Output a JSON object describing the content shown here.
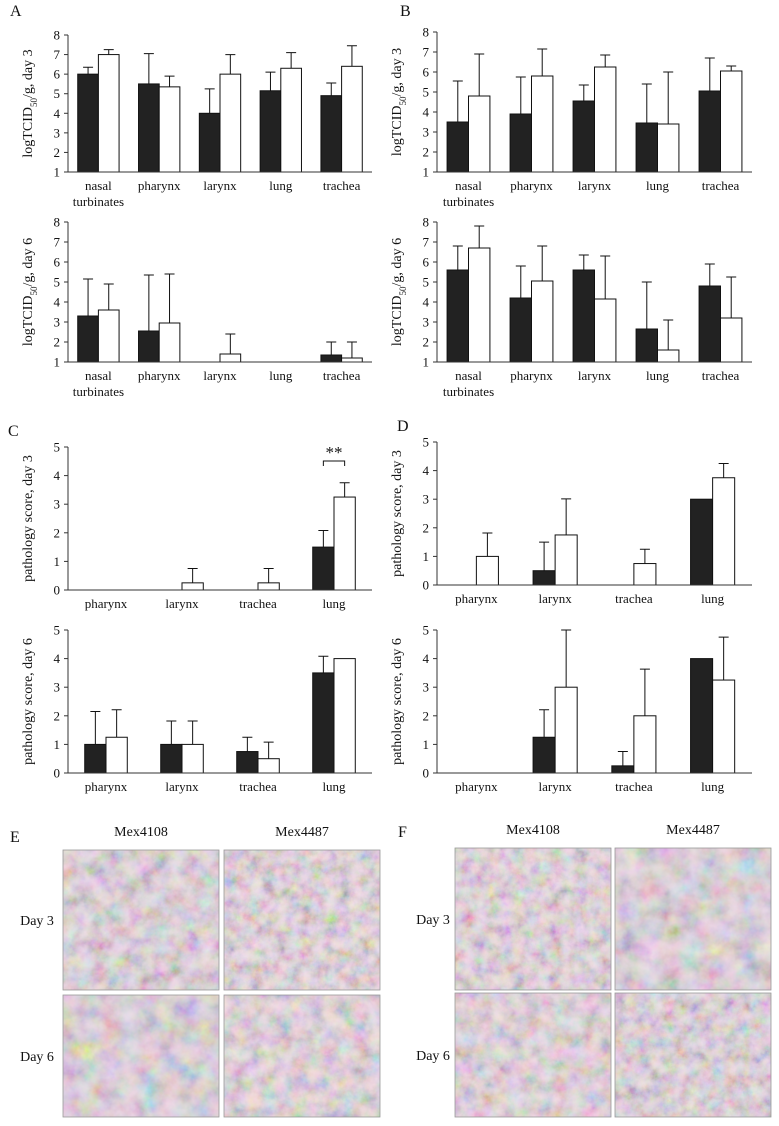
{
  "panel_labels": [
    "A",
    "B",
    "C",
    "D",
    "E",
    "F"
  ],
  "chart_data": [
    {
      "type": "bar",
      "y_label": [
        "logTCID",
        "50",
        "/g, day 3"
      ],
      "categories": [
        "nasal turbinates",
        "pharynx",
        "larynx",
        "lung",
        "trachea"
      ],
      "series": [
        {
          "color": "#222222",
          "values": [
            6.0,
            5.5,
            4.0,
            5.15,
            4.9
          ],
          "errors": [
            0.35,
            1.55,
            1.25,
            0.95,
            0.65
          ]
        },
        {
          "color": "#ffffff",
          "values": [
            7.0,
            5.35,
            6.0,
            6.3,
            6.4
          ],
          "errors": [
            0.25,
            0.55,
            1.0,
            0.8,
            1.05
          ]
        }
      ],
      "ylim": [
        1,
        8
      ],
      "yticks": [
        1,
        2,
        3,
        4,
        5,
        6,
        7,
        8
      ]
    },
    {
      "type": "bar",
      "y_label": [
        "logTCID",
        "50",
        "/g, day 6"
      ],
      "categories": [
        "nasal turbinates",
        "pharynx",
        "larynx",
        "lung",
        "trachea"
      ],
      "series": [
        {
          "color": "#222222",
          "values": [
            3.3,
            2.55,
            1.0,
            1.0,
            1.35
          ],
          "errors": [
            1.85,
            2.8,
            0,
            0,
            0.65
          ]
        },
        {
          "color": "#ffffff",
          "values": [
            3.6,
            2.95,
            1.4,
            1.0,
            1.2
          ],
          "errors": [
            1.3,
            2.45,
            1.0,
            0,
            0.8
          ]
        }
      ],
      "ylim": [
        1,
        8
      ],
      "yticks": [
        1,
        2,
        3,
        4,
        5,
        6,
        7,
        8
      ]
    },
    {
      "type": "bar",
      "y_label": [
        "logTCID",
        "50",
        "/g, day 3"
      ],
      "categories": [
        "nasal turbinates",
        "pharynx",
        "larynx",
        "lung",
        "trachea"
      ],
      "series": [
        {
          "color": "#222222",
          "values": [
            3.5,
            3.9,
            4.55,
            3.45,
            5.05
          ],
          "errors": [
            2.05,
            1.85,
            0.8,
            1.95,
            1.65
          ]
        },
        {
          "color": "#ffffff",
          "values": [
            4.8,
            5.8,
            6.25,
            3.4,
            6.05
          ],
          "errors": [
            2.1,
            1.35,
            0.6,
            2.6,
            0.25
          ]
        }
      ],
      "ylim": [
        1,
        8
      ],
      "yticks": [
        1,
        2,
        3,
        4,
        5,
        6,
        7,
        8
      ]
    },
    {
      "type": "bar",
      "y_label": [
        "logTCID",
        "50",
        "/g, day 6"
      ],
      "categories": [
        "nasal turbinates",
        "pharynx",
        "larynx",
        "lung",
        "trachea"
      ],
      "series": [
        {
          "color": "#222222",
          "values": [
            5.6,
            4.2,
            5.6,
            2.65,
            4.8
          ],
          "errors": [
            1.2,
            1.6,
            0.75,
            2.35,
            1.1
          ]
        },
        {
          "color": "#ffffff",
          "values": [
            6.7,
            5.05,
            4.15,
            1.6,
            3.2
          ],
          "errors": [
            1.1,
            1.75,
            2.15,
            1.5,
            2.05
          ]
        }
      ],
      "ylim": [
        1,
        8
      ],
      "yticks": [
        1,
        2,
        3,
        4,
        5,
        6,
        7,
        8
      ]
    },
    {
      "type": "bar",
      "y_label": [
        "pathology score, day 3"
      ],
      "categories": [
        "pharynx",
        "larynx",
        "trachea",
        "lung"
      ],
      "series": [
        {
          "color": "#222222",
          "values": [
            0,
            0,
            0,
            1.5
          ],
          "errors": [
            0,
            0,
            0,
            0.58
          ]
        },
        {
          "color": "#ffffff",
          "values": [
            0,
            0.25,
            0.25,
            3.25
          ],
          "errors": [
            0,
            0.5,
            0.5,
            0.5
          ]
        }
      ],
      "ylim": [
        0,
        5
      ],
      "yticks": [
        0,
        1,
        2,
        3,
        4,
        5
      ],
      "annotations": [
        {
          "text": "**",
          "x": "lung"
        }
      ]
    },
    {
      "type": "bar",
      "y_label": [
        "pathology score, day 6"
      ],
      "categories": [
        "pharynx",
        "larynx",
        "trachea",
        "lung"
      ],
      "series": [
        {
          "color": "#222222",
          "values": [
            1.0,
            1.0,
            0.75,
            3.5
          ],
          "errors": [
            1.15,
            0.82,
            0.5,
            0.58
          ]
        },
        {
          "color": "#ffffff",
          "values": [
            1.25,
            1.0,
            0.5,
            4.0
          ],
          "errors": [
            0.96,
            0.82,
            0.58,
            0
          ]
        }
      ],
      "ylim": [
        0,
        5
      ],
      "yticks": [
        0,
        1,
        2,
        3,
        4,
        5
      ]
    },
    {
      "type": "bar",
      "y_label": [
        "pathology score, day 3"
      ],
      "categories": [
        "pharynx",
        "larynx",
        "trachea",
        "lung"
      ],
      "series": [
        {
          "color": "#222222",
          "values": [
            0,
            0.5,
            0,
            3.0
          ],
          "errors": [
            0,
            1.0,
            0,
            0
          ]
        },
        {
          "color": "#ffffff",
          "values": [
            1.0,
            1.75,
            0.75,
            3.75
          ],
          "errors": [
            0.82,
            1.26,
            0.5,
            0.5
          ]
        }
      ],
      "ylim": [
        0,
        5
      ],
      "yticks": [
        0,
        1,
        2,
        3,
        4,
        5
      ]
    },
    {
      "type": "bar",
      "y_label": [
        "pathology score, day 6"
      ],
      "categories": [
        "pharynx",
        "larynx",
        "trachea",
        "lung"
      ],
      "series": [
        {
          "color": "#222222",
          "values": [
            0,
            1.25,
            0.25,
            4.0
          ],
          "errors": [
            0,
            0.96,
            0.5,
            0
          ]
        },
        {
          "color": "#ffffff",
          "values": [
            0,
            3.0,
            2.0,
            3.25
          ],
          "errors": [
            0,
            2.0,
            1.63,
            1.5
          ]
        }
      ],
      "ylim": [
        0,
        5
      ],
      "yticks": [
        0,
        1,
        2,
        3,
        4,
        5
      ]
    }
  ],
  "micrographs": [
    {
      "columns": [
        "Mex4108",
        "Mex4487"
      ],
      "rows": [
        "Day 3",
        "Day 6"
      ]
    },
    {
      "columns": [
        "Mex4108",
        "Mex4487"
      ],
      "rows": [
        "Day 3",
        "Day 6"
      ]
    }
  ]
}
